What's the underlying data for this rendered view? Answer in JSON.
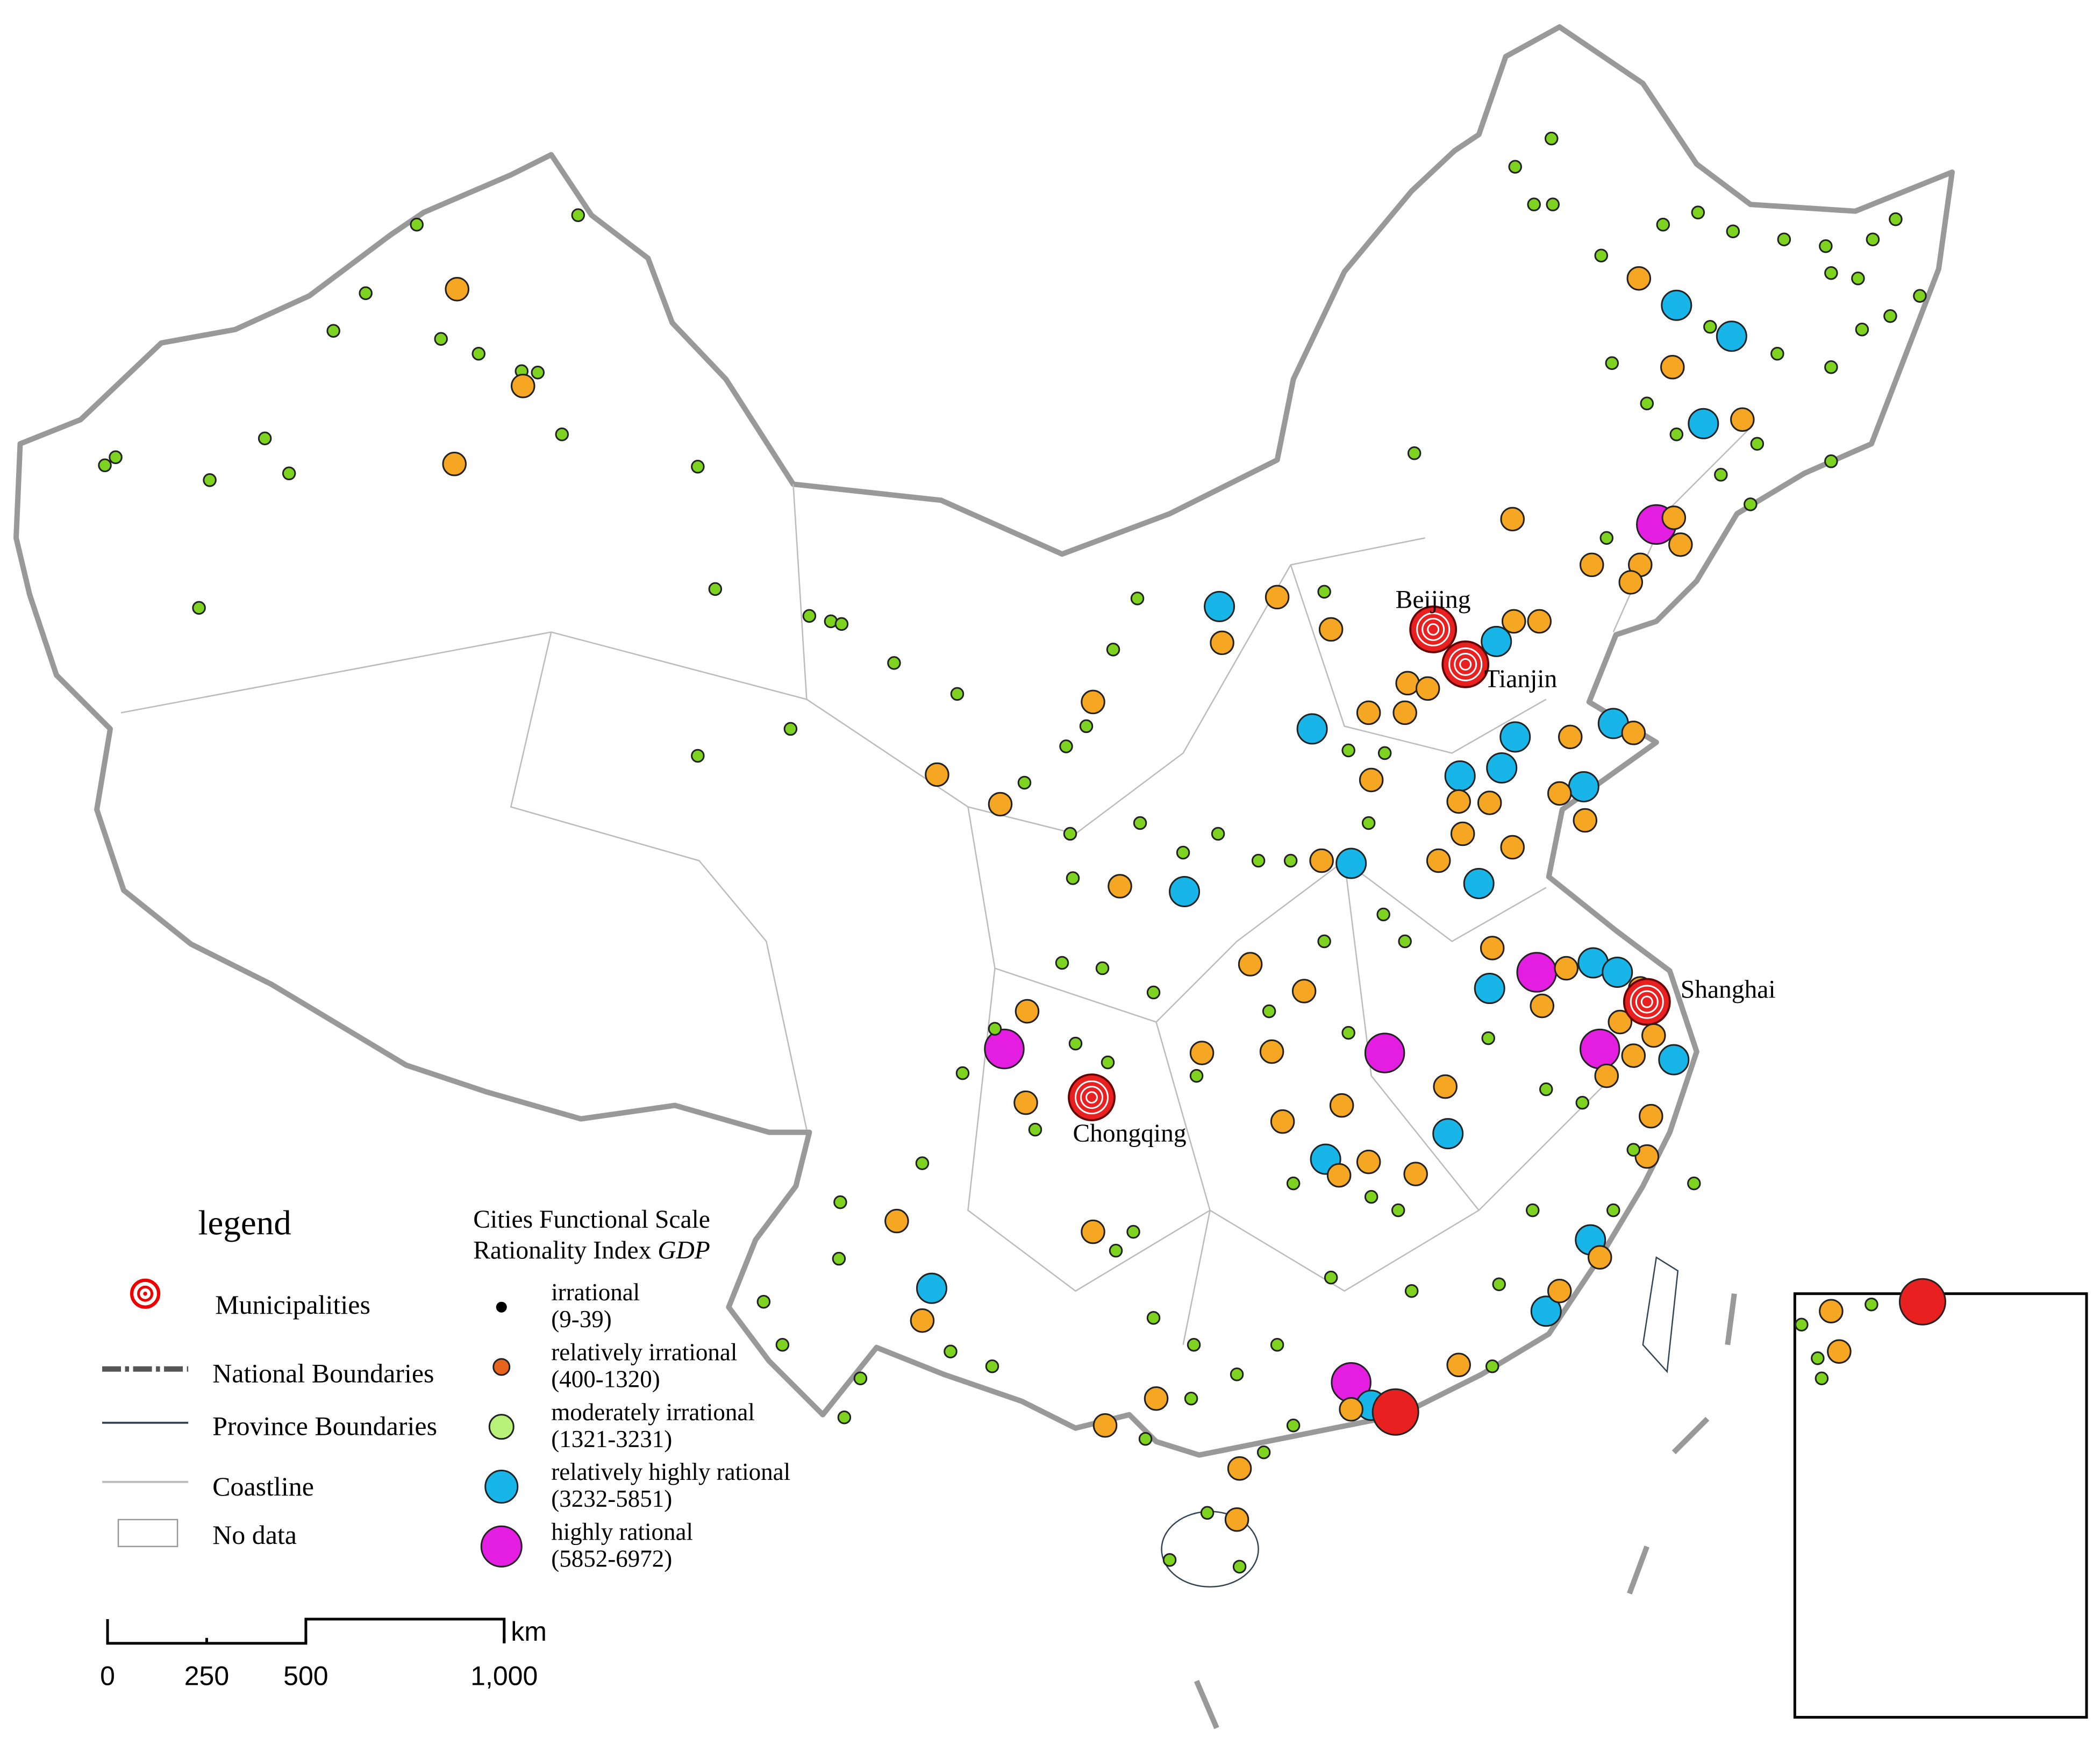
{
  "map": {
    "municipalities": [
      "Beijing",
      "Tianjin",
      "Shanghai",
      "Chongqing"
    ],
    "legend": {
      "title": "legend",
      "items": [
        "Municipalities",
        "National Boundaries",
        "Province Boundaries",
        "Coastline",
        "No data"
      ],
      "index_title": [
        "Cities Functional Scale",
        "Rationality Index "
      ],
      "index_title_em": "GDP",
      "classes": [
        {
          "name": "irrational",
          "range": "(9-39)"
        },
        {
          "name": "relatively irrational",
          "range": "(400-1320)"
        },
        {
          "name": "moderately irrational",
          "range": "(1321-3231)"
        },
        {
          "name": "relatively highly rational",
          "range": "(3232-5851)"
        },
        {
          "name": "highly rational",
          "range": "(5852-6972)"
        }
      ]
    },
    "scale": {
      "ticks": [
        0,
        250,
        500,
        {
          "value": 1000,
          "label": "1,000"
        }
      ],
      "max": 1000,
      "unit": "km"
    }
  }
}
